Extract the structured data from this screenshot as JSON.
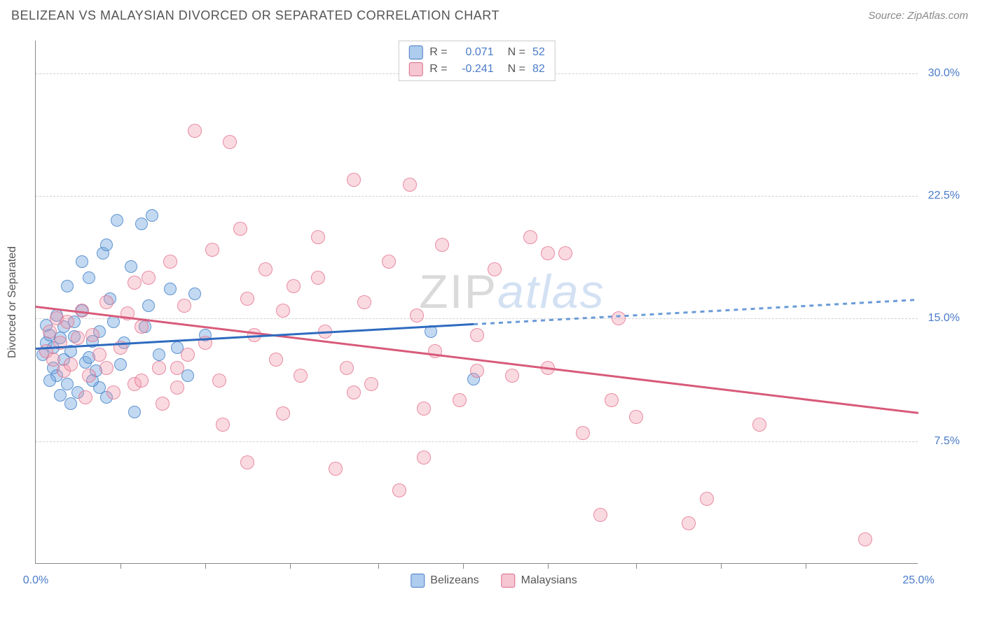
{
  "header": {
    "title": "BELIZEAN VS MALAYSIAN DIVORCED OR SEPARATED CORRELATION CHART",
    "source_prefix": "Source: ",
    "source_name": "ZipAtlas.com"
  },
  "chart": {
    "type": "scatter",
    "y_label": "Divorced or Separated",
    "background_color": "#ffffff",
    "grid_color": "#d0d0d0",
    "axis_color": "#888888",
    "xlim": [
      0,
      25
    ],
    "ylim": [
      0,
      32
    ],
    "y_ticks": [
      {
        "value": 7.5,
        "label": "7.5%"
      },
      {
        "value": 15.0,
        "label": "15.0%"
      },
      {
        "value": 22.5,
        "label": "22.5%"
      },
      {
        "value": 30.0,
        "label": "30.0%"
      }
    ],
    "x_ticks_major": [
      0,
      25
    ],
    "x_tick_labels": [
      {
        "value": 0,
        "label": "0.0%"
      },
      {
        "value": 25,
        "label": "25.0%"
      }
    ],
    "x_ticks_minor": [
      2.4,
      4.8,
      7.2,
      9.7,
      12.1,
      14.5,
      17.0,
      19.4,
      21.8
    ],
    "series": [
      {
        "name": "Belizeans",
        "color_fill": "rgba(120,170,225,0.45)",
        "color_stroke": "rgba(70,130,200,0.8)",
        "marker_size": 18,
        "R": "0.071",
        "N": "52",
        "trend": {
          "x1": 0,
          "y1": 13.2,
          "x2": 12.4,
          "y2": 14.7,
          "color": "#2e6bc0",
          "dash": false
        },
        "trend_ext": {
          "x1": 12.4,
          "y1": 14.7,
          "x2": 25,
          "y2": 16.2,
          "color": "#6a9bd8",
          "dash": true
        },
        "points": [
          [
            0.2,
            12.8
          ],
          [
            0.3,
            13.5
          ],
          [
            0.4,
            14.0
          ],
          [
            0.5,
            12.0
          ],
          [
            0.5,
            13.2
          ],
          [
            0.6,
            11.5
          ],
          [
            0.7,
            13.8
          ],
          [
            0.8,
            12.5
          ],
          [
            0.8,
            14.5
          ],
          [
            0.9,
            11.0
          ],
          [
            1.0,
            13.0
          ],
          [
            1.1,
            14.8
          ],
          [
            1.2,
            10.5
          ],
          [
            1.3,
            15.5
          ],
          [
            1.4,
            12.3
          ],
          [
            1.5,
            17.5
          ],
          [
            1.6,
            13.6
          ],
          [
            1.7,
            11.8
          ],
          [
            1.8,
            14.2
          ],
          [
            1.9,
            19.0
          ],
          [
            2.0,
            10.2
          ],
          [
            2.1,
            16.2
          ],
          [
            2.3,
            21.0
          ],
          [
            2.5,
            13.5
          ],
          [
            2.7,
            18.2
          ],
          [
            2.8,
            9.3
          ],
          [
            3.0,
            20.8
          ],
          [
            3.1,
            14.5
          ],
          [
            3.3,
            21.3
          ],
          [
            3.5,
            12.8
          ],
          [
            3.8,
            16.8
          ],
          [
            4.0,
            13.2
          ],
          [
            4.3,
            11.5
          ],
          [
            4.5,
            16.5
          ],
          [
            4.8,
            14.0
          ],
          [
            11.2,
            14.2
          ],
          [
            12.4,
            11.3
          ],
          [
            1.3,
            18.5
          ],
          [
            2.0,
            19.5
          ],
          [
            1.0,
            9.8
          ],
          [
            0.6,
            15.2
          ],
          [
            0.9,
            17.0
          ],
          [
            1.5,
            12.6
          ],
          [
            2.2,
            14.8
          ],
          [
            0.4,
            11.2
          ],
          [
            1.1,
            13.9
          ],
          [
            1.8,
            10.8
          ],
          [
            3.2,
            15.8
          ],
          [
            1.6,
            11.2
          ],
          [
            2.4,
            12.2
          ],
          [
            0.3,
            14.6
          ],
          [
            0.7,
            10.3
          ]
        ]
      },
      {
        "name": "Malaysians",
        "color_fill": "rgba(240,150,170,0.35)",
        "color_stroke": "rgba(225,110,140,0.75)",
        "marker_size": 20,
        "R": "-0.241",
        "N": "82",
        "trend": {
          "x1": 0,
          "y1": 15.8,
          "x2": 25,
          "y2": 9.3,
          "color": "#d85a7a",
          "dash": false
        },
        "points": [
          [
            0.3,
            13.0
          ],
          [
            0.4,
            14.2
          ],
          [
            0.5,
            12.5
          ],
          [
            0.6,
            15.0
          ],
          [
            0.7,
            13.5
          ],
          [
            0.8,
            11.8
          ],
          [
            0.9,
            14.8
          ],
          [
            1.0,
            12.2
          ],
          [
            1.2,
            13.8
          ],
          [
            1.3,
            15.5
          ],
          [
            1.5,
            11.5
          ],
          [
            1.6,
            14.0
          ],
          [
            1.8,
            12.8
          ],
          [
            2.0,
            16.0
          ],
          [
            2.2,
            10.5
          ],
          [
            2.4,
            13.2
          ],
          [
            2.6,
            15.3
          ],
          [
            2.8,
            11.0
          ],
          [
            3.0,
            14.5
          ],
          [
            3.2,
            17.5
          ],
          [
            3.5,
            12.0
          ],
          [
            3.8,
            18.5
          ],
          [
            4.0,
            10.8
          ],
          [
            4.2,
            15.8
          ],
          [
            4.5,
            26.5
          ],
          [
            4.8,
            13.5
          ],
          [
            5.0,
            19.2
          ],
          [
            5.2,
            11.2
          ],
          [
            5.5,
            25.8
          ],
          [
            5.8,
            20.5
          ],
          [
            6.0,
            16.2
          ],
          [
            6.2,
            14.0
          ],
          [
            6.5,
            18.0
          ],
          [
            6.8,
            12.5
          ],
          [
            7.0,
            15.5
          ],
          [
            7.3,
            17.0
          ],
          [
            7.5,
            11.5
          ],
          [
            8.0,
            20.0
          ],
          [
            8.2,
            14.2
          ],
          [
            8.5,
            5.8
          ],
          [
            8.8,
            12.0
          ],
          [
            9.0,
            23.5
          ],
          [
            9.3,
            16.0
          ],
          [
            9.5,
            11.0
          ],
          [
            10.0,
            18.5
          ],
          [
            10.3,
            4.5
          ],
          [
            10.6,
            23.2
          ],
          [
            10.8,
            15.2
          ],
          [
            11.0,
            9.5
          ],
          [
            11.3,
            13.0
          ],
          [
            11.5,
            19.5
          ],
          [
            12.0,
            10.0
          ],
          [
            12.5,
            14.0
          ],
          [
            13.0,
            18.0
          ],
          [
            13.5,
            11.5
          ],
          [
            14.0,
            20.0
          ],
          [
            14.5,
            12.0
          ],
          [
            15.0,
            19.0
          ],
          [
            15.5,
            8.0
          ],
          [
            16.0,
            3.0
          ],
          [
            16.3,
            10.0
          ],
          [
            16.5,
            15.0
          ],
          [
            17.0,
            9.0
          ],
          [
            18.5,
            2.5
          ],
          [
            19.0,
            4.0
          ],
          [
            20.5,
            8.5
          ],
          [
            23.5,
            1.5
          ],
          [
            1.4,
            10.2
          ],
          [
            2.8,
            17.2
          ],
          [
            3.6,
            9.8
          ],
          [
            4.3,
            12.8
          ],
          [
            5.3,
            8.5
          ],
          [
            6.0,
            6.2
          ],
          [
            7.0,
            9.2
          ],
          [
            8.0,
            17.5
          ],
          [
            9.0,
            10.5
          ],
          [
            11.0,
            6.5
          ],
          [
            12.5,
            11.8
          ],
          [
            2.0,
            12.0
          ],
          [
            3.0,
            11.2
          ],
          [
            4.0,
            12.0
          ],
          [
            14.5,
            19.0
          ]
        ]
      }
    ],
    "watermark": {
      "zip": "ZIP",
      "atlas": "atlas"
    },
    "bottom_legend": [
      {
        "swatch": "blue",
        "label": "Belizeans"
      },
      {
        "swatch": "pink",
        "label": "Malaysians"
      }
    ]
  }
}
